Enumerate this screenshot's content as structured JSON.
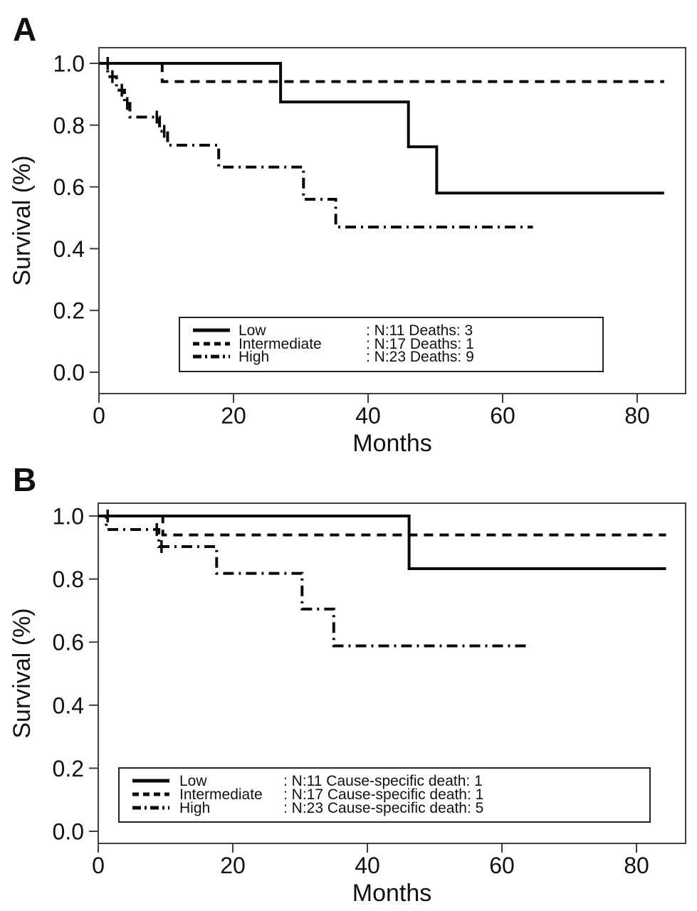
{
  "figure": {
    "panel_a_label": "A",
    "panel_b_label": "B",
    "accent_color": "#176896",
    "curve_color": "#0a0a0a",
    "axis_color": "#3f3f3f"
  },
  "chart_data": [
    {
      "type": "line",
      "subtype": "kaplan-meier-step",
      "panel": "A",
      "title": "",
      "xlabel": "Months",
      "ylabel": "Survival (%)",
      "xlim": [
        0,
        87
      ],
      "ylim": [
        0,
        1.05
      ],
      "x_ticks": [
        0,
        20,
        40,
        60,
        80
      ],
      "y_ticks": [
        1.0,
        0.8,
        0.6,
        0.4,
        0.2,
        0.0
      ],
      "grid": false,
      "legend_position": "inside-bottom-left",
      "series": [
        {
          "name": "Low",
          "line_style": "solid",
          "legend_stats": ": N:11  Deaths: 3",
          "points": [
            [
              0,
              1.0
            ],
            [
              27,
              1.0
            ],
            [
              27,
              0.875
            ],
            [
              46,
              0.875
            ],
            [
              46,
              0.73
            ],
            [
              50.2,
              0.73
            ],
            [
              50.2,
              0.58
            ],
            [
              84,
              0.58
            ]
          ],
          "censor_marks": [
            [
              1.3,
              1.0
            ]
          ]
        },
        {
          "name": "Intermediate",
          "line_style": "dashed",
          "legend_stats": ": N:17  Deaths: 1",
          "points": [
            [
              0,
              1.0
            ],
            [
              9.4,
              1.0
            ],
            [
              9.4,
              0.941
            ],
            [
              84,
              0.941
            ]
          ],
          "censor_marks": []
        },
        {
          "name": "High",
          "line_style": "dash-dot",
          "legend_stats": ": N:23  Deaths: 9",
          "points": [
            [
              0,
              1.0
            ],
            [
              1.3,
              1.0
            ],
            [
              1.3,
              0.957
            ],
            [
              2.6,
              0.957
            ],
            [
              2.6,
              0.913
            ],
            [
              3.8,
              0.913
            ],
            [
              3.8,
              0.87
            ],
            [
              4.6,
              0.87
            ],
            [
              4.6,
              0.826
            ],
            [
              9,
              0.826
            ],
            [
              9,
              0.78
            ],
            [
              10.2,
              0.78
            ],
            [
              10.2,
              0.735
            ],
            [
              17.8,
              0.735
            ],
            [
              17.8,
              0.664
            ],
            [
              30.4,
              0.664
            ],
            [
              30.4,
              0.56
            ],
            [
              35.2,
              0.56
            ],
            [
              35.2,
              0.47
            ],
            [
              64.5,
              0.47
            ]
          ],
          "censor_marks": [
            [
              2,
              0.957
            ],
            [
              3.4,
              0.913
            ],
            [
              4.2,
              0.87
            ],
            [
              8.6,
              0.826
            ],
            [
              9.7,
              0.78
            ]
          ]
        }
      ]
    },
    {
      "type": "line",
      "subtype": "kaplan-meier-step",
      "panel": "B",
      "title": "",
      "xlabel": "Months",
      "ylabel": "Survival (%)",
      "xlim": [
        0,
        87
      ],
      "ylim": [
        0,
        1.05
      ],
      "x_ticks": [
        0,
        20,
        40,
        60,
        80
      ],
      "y_ticks": [
        1.0,
        0.8,
        0.6,
        0.4,
        0.2,
        0.0
      ],
      "grid": false,
      "legend_position": "inside-bottom-left",
      "series": [
        {
          "name": "Low",
          "line_style": "solid",
          "legend_stats": ": N:11  Cause-specific death: 1",
          "points": [
            [
              0,
              1.0
            ],
            [
              46.2,
              1.0
            ],
            [
              46.2,
              0.833
            ],
            [
              84.4,
              0.833
            ]
          ],
          "censor_marks": [
            [
              1.4,
              1.0
            ]
          ]
        },
        {
          "name": "Intermediate",
          "line_style": "dashed",
          "legend_stats": ": N:17  Cause-specific death: 1",
          "points": [
            [
              0,
              1.0
            ],
            [
              9.6,
              1.0
            ],
            [
              9.6,
              0.94
            ],
            [
              84.4,
              0.94
            ]
          ],
          "censor_marks": []
        },
        {
          "name": "High",
          "line_style": "dash-dot",
          "legend_stats": ": N:23  Cause-specific death: 5",
          "points": [
            [
              0,
              1.0
            ],
            [
              1.2,
              1.0
            ],
            [
              1.2,
              0.957
            ],
            [
              9,
              0.957
            ],
            [
              9,
              0.903
            ],
            [
              17.6,
              0.903
            ],
            [
              17.6,
              0.818
            ],
            [
              30.3,
              0.818
            ],
            [
              30.3,
              0.705
            ],
            [
              35,
              0.705
            ],
            [
              35,
              0.588
            ],
            [
              64.3,
              0.588
            ]
          ],
          "censor_marks": [
            [
              8.7,
              0.957
            ],
            [
              9.4,
              0.903
            ]
          ]
        }
      ]
    }
  ]
}
